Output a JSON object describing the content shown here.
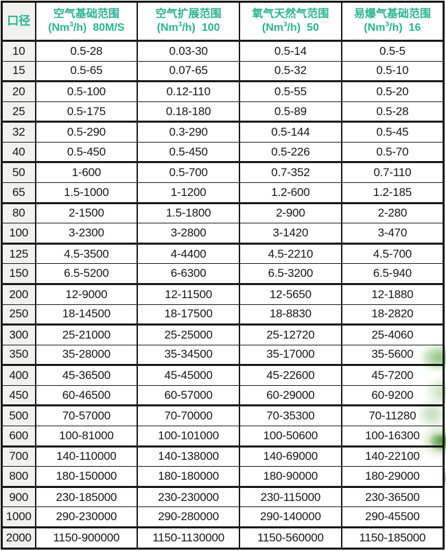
{
  "colors": {
    "header_text": "#2bb493",
    "diameter_column_bg": "#f1f1ef",
    "table_border": "#1a1a1a",
    "body_text": "#161616",
    "leaf_green": "#74b25a"
  },
  "chart_data": {
    "type": "table",
    "header": {
      "diameter": "口径",
      "columns": [
        {
          "title": "空气基础范围",
          "unit_open": "(Nm",
          "unit_sup": "3",
          "unit_close": "/h)",
          "suffix": "80M/S"
        },
        {
          "title": "空气扩展范围",
          "unit_open": "(Nm",
          "unit_sup": "3",
          "unit_close": "/h)",
          "suffix": "100"
        },
        {
          "title": "氧气天然气范围",
          "unit_open": "(Nm",
          "unit_sup": "3",
          "unit_close": "/h)",
          "suffix": "50"
        },
        {
          "title": "易爆气基础范围",
          "unit_open": "(Nm",
          "unit_sup": "3",
          "unit_close": "/h)",
          "suffix": "16"
        }
      ]
    },
    "columns_flat": [
      "口径",
      "空气基础范围 (Nm³/h) 80M/S",
      "空气扩展范围 (Nm³/h) 100",
      "氧气天然气范围 (Nm³/h) 50",
      "易爆气基础范围 (Nm³/h) 16"
    ],
    "rows": [
      [
        "10",
        "0.5-28",
        "0.03-30",
        "0.5-14",
        "0.5-5"
      ],
      [
        "15",
        "0.5-65",
        "0.07-65",
        "0.5-32",
        "0.5-10"
      ],
      [
        "20",
        "0.5-100",
        "0.12-110",
        "0.5-55",
        "0.5-20"
      ],
      [
        "25",
        "0.5-175",
        "0.18-180",
        "0.5-89",
        "0.5-28"
      ],
      [
        "32",
        "0.5-290",
        "0.3-290",
        "0.5-144",
        "0.5-45"
      ],
      [
        "40",
        "0.5-450",
        "0.5-450",
        "0.5-226",
        "0.5-70"
      ],
      [
        "50",
        "1-600",
        "0.5-700",
        "0.7-352",
        "0.7-110"
      ],
      [
        "65",
        "1.5-1000",
        "1-1200",
        "1.2-600",
        "1.2-185"
      ],
      [
        "80",
        "2-1500",
        "1.5-1800",
        "2-900",
        "2-280"
      ],
      [
        "100",
        "3-2300",
        "3-2800",
        "3-1420",
        "3-470"
      ],
      [
        "125",
        "4.5-3500",
        "4-4400",
        "4.5-2210",
        "4.5-700"
      ],
      [
        "150",
        "6.5-5200",
        "6-6300",
        "6.5-3200",
        "6.5-940"
      ],
      [
        "200",
        "12-9000",
        "12-11500",
        "12-5650",
        "12-1880"
      ],
      [
        "250",
        "18-14500",
        "18-17500",
        "18-8830",
        "18-2820"
      ],
      [
        "300",
        "25-21000",
        "25-25000",
        "25-12720",
        "25-4060"
      ],
      [
        "350",
        "35-28000",
        "35-34500",
        "35-17000",
        "35-5600"
      ],
      [
        "400",
        "45-36500",
        "45-45000",
        "45-22600",
        "45-7200"
      ],
      [
        "450",
        "60-46500",
        "60-57000",
        "60-29000",
        "60-9200"
      ],
      [
        "500",
        "70-57000",
        "70-70000",
        "70-35300",
        "70-11280"
      ],
      [
        "600",
        "100-81000",
        "100-101000",
        "100-50600",
        "100-16300"
      ],
      [
        "700",
        "140-110000",
        "140-138000",
        "140-69000",
        "140-22100"
      ],
      [
        "800",
        "180-150000",
        "180-180000",
        "180-90000",
        "180-29000"
      ],
      [
        "900",
        "230-185000",
        "230-230000",
        "230-115000",
        "230-36500"
      ],
      [
        "1000",
        "290-230000",
        "290-280000",
        "290-140000",
        "290-45500"
      ],
      [
        "2000",
        "1150-900000",
        "1150-1130000",
        "1150-560000",
        "1150-185000"
      ]
    ]
  }
}
